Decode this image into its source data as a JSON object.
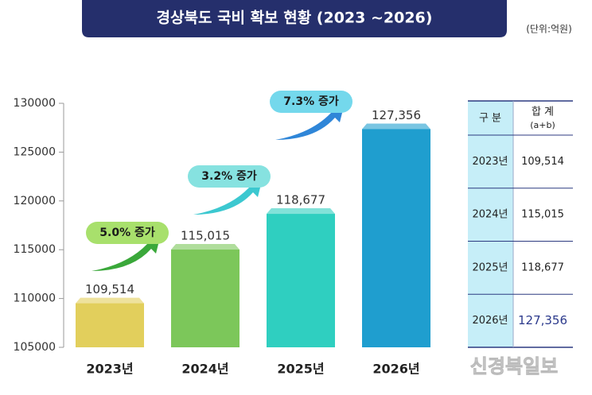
{
  "chart_data": {
    "type": "bar",
    "title": "경상북도 국비 확보 현황 (2023 ~2026)",
    "unit": "(단위:억원)",
    "categories": [
      "2023년",
      "2024년",
      "2025년",
      "2026년"
    ],
    "values": [
      109514,
      115015,
      118677,
      127356
    ],
    "value_labels": [
      "109,514",
      "115,015",
      "118,677",
      "127,356"
    ],
    "colors": [
      "#e2cf5c",
      "#7cc75a",
      "#2fcfc0",
      "#1f9ecf"
    ],
    "ylim": [
      105000,
      130000
    ],
    "yticks": [
      105000,
      110000,
      115000,
      120000,
      125000,
      130000
    ],
    "annotations": [
      "5.0% 증가",
      "3.2% 증가",
      "7.3% 증가"
    ]
  },
  "table": {
    "header": [
      "구 분",
      "합 계",
      "(a+b)"
    ],
    "rows": [
      [
        "2023년",
        "109,514"
      ],
      [
        "2024년",
        "115,015"
      ],
      [
        "2025년",
        "118,677"
      ],
      [
        "2026년",
        "127,356"
      ]
    ]
  },
  "watermark": "신경북일보"
}
